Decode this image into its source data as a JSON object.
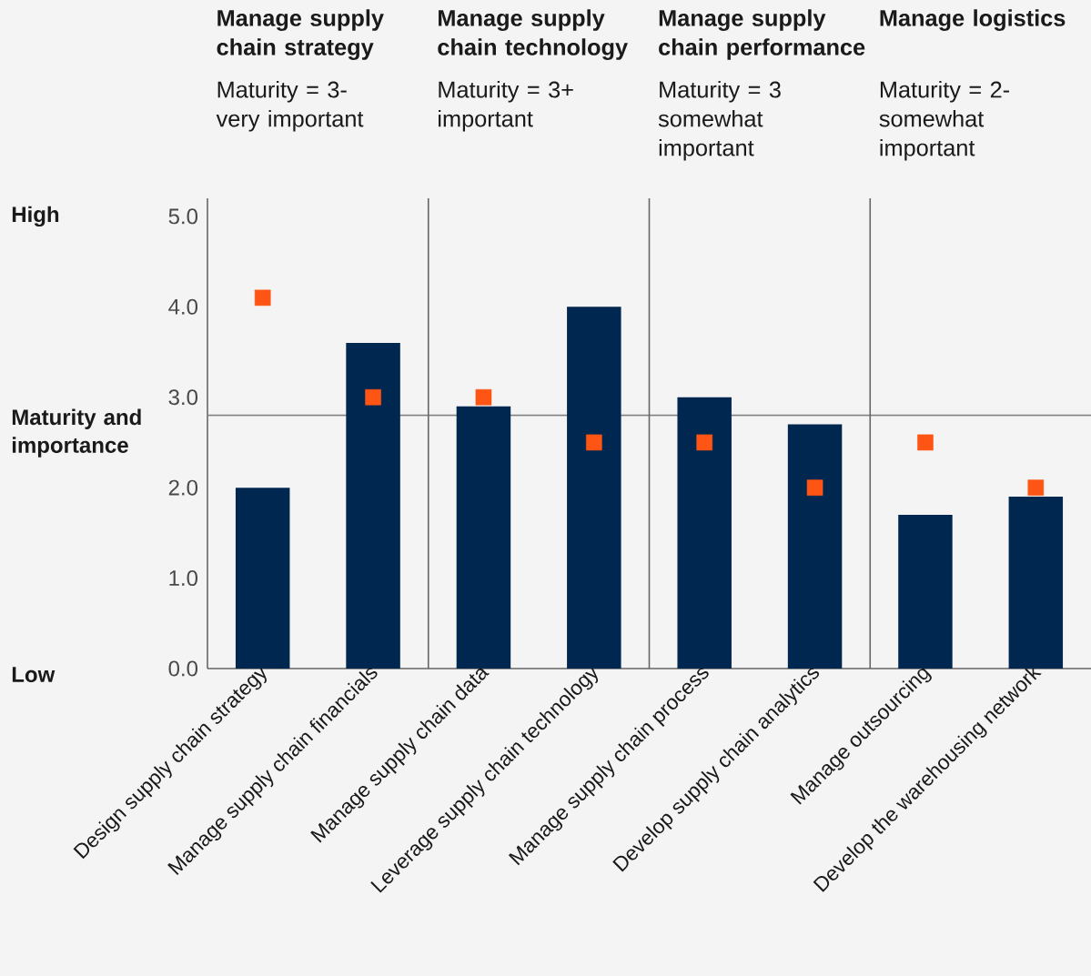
{
  "chart_data": {
    "type": "bar",
    "categories": [
      "Design supply chain strategy",
      "Manage supply chain financials",
      "Manage supply chain data",
      "Leverage supply chain technology",
      "Manage supply chain process",
      "Develop supply chain analytics",
      "Manage outsourcing",
      "Develop the warehousing network"
    ],
    "series": [
      {
        "color": "#00274f",
        "values": [
          2.0,
          3.6,
          2.9,
          4.0,
          3.0,
          2.7,
          1.7,
          1.9
        ]
      },
      {
        "type": "scatter",
        "marker": "square",
        "color": "#fe5515",
        "values": [
          4.1,
          3.0,
          3.0,
          2.5,
          2.5,
          2.0,
          2.5,
          2.0
        ]
      }
    ],
    "ylim": [
      0,
      5.2
    ],
    "yticks": [
      {
        "value": 0,
        "label": "0.0"
      },
      {
        "value": 1,
        "label": "1.0"
      },
      {
        "value": 2,
        "label": "2.0"
      },
      {
        "value": 3,
        "label": "3.0"
      },
      {
        "value": 4,
        "label": "4.0"
      },
      {
        "value": 5,
        "label": "5.0"
      }
    ],
    "ref_lines": [
      {
        "axis": "y",
        "value": 2.8,
        "color": "#808080"
      }
    ],
    "ylabel": "Maturity and importance",
    "annotations": [
      "Manage supply chain strategy",
      "Manage supply chain technology",
      "Manage supply chain performance",
      "Manage logistics",
      "Maturity = 3- very important",
      "Maturity = 3+ important",
      "Maturity = 3 somewhat important",
      "Maturity = 2- somewhat important",
      "High",
      "Low"
    ],
    "grid": false
  }
}
